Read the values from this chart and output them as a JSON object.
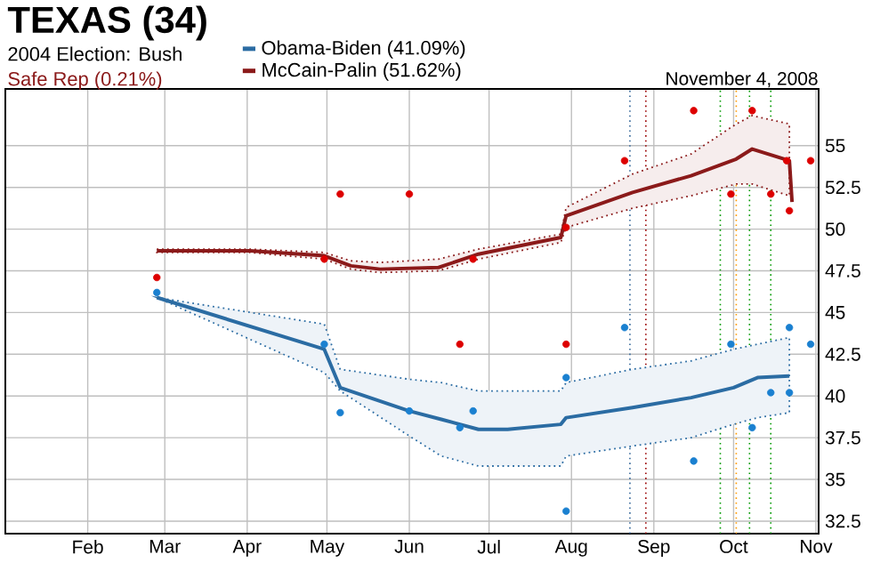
{
  "chart_data": {
    "type": "line",
    "title": "TEXAS (34)",
    "subtitle": "2004 Election: Bush",
    "annotations": [
      "Safe Rep (0.21%)",
      "November 4, 2008"
    ],
    "xlim": [
      "2008-01-01",
      "2008-11-02"
    ],
    "xticks": [
      {
        "value": "2008-02-01",
        "label": "Feb"
      },
      {
        "value": "2008-03-01",
        "label": "Mar"
      },
      {
        "value": "2008-04-01",
        "label": "Apr"
      },
      {
        "value": "2008-05-01",
        "label": "May"
      },
      {
        "value": "2008-06-01",
        "label": "Jun"
      },
      {
        "value": "2008-07-01",
        "label": "Jul"
      },
      {
        "value": "2008-08-01",
        "label": "Aug"
      },
      {
        "value": "2008-09-01",
        "label": "Sep"
      },
      {
        "value": "2008-10-01",
        "label": "Oct"
      },
      {
        "value": "2008-11-01",
        "label": "Nov"
      }
    ],
    "ylim": [
      31.75,
      58.4
    ],
    "yticks": [
      32.5,
      35,
      37.5,
      40,
      42.5,
      45,
      47.5,
      50,
      52.5,
      55
    ],
    "grid": true,
    "legend": "top",
    "ref_lines": [
      {
        "axis": "x",
        "value": "2008-08-23",
        "color": "#336699",
        "line_style": "dotted"
      },
      {
        "axis": "x",
        "value": "2008-08-29",
        "color": "#990000",
        "line_style": "dotted"
      },
      {
        "axis": "x",
        "value": "2008-09-26",
        "color": "#009900",
        "line_style": "dotted"
      },
      {
        "axis": "x",
        "value": "2008-10-02",
        "color": "#ff9900",
        "line_style": "dotted"
      },
      {
        "axis": "x",
        "value": "2008-10-07",
        "color": "#009900",
        "line_style": "dotted"
      },
      {
        "axis": "x",
        "value": "2008-10-15",
        "color": "#009900",
        "line_style": "dotted"
      }
    ],
    "series": [
      {
        "type": "line",
        "name": "Obama-Biden (41.09%)",
        "color": "#2b6ca3",
        "line_style": "solid",
        "marker": "none",
        "x": [
          "2008-02-27",
          "2008-04-30",
          "2008-05-06",
          "2008-06-01",
          "2008-06-13",
          "2008-06-27",
          "2008-07-08",
          "2008-07-28",
          "2008-07-30",
          "2008-08-24",
          "2008-09-15",
          "2008-10-01",
          "2008-10-10",
          "2008-10-22"
        ],
        "values": [
          45.9,
          42.8,
          40.5,
          39.1,
          38.6,
          38.0,
          38.0,
          38.3,
          38.7,
          39.3,
          39.9,
          40.5,
          41.1,
          41.2
        ],
        "lower": [
          45.9,
          41.4,
          40.3,
          37.6,
          36.4,
          35.8,
          35.8,
          35.8,
          36.4,
          37.0,
          37.5,
          38.3,
          38.7,
          39.0
        ],
        "upper": [
          45.9,
          44.3,
          41.6,
          41.0,
          40.8,
          40.3,
          40.3,
          40.3,
          40.8,
          41.6,
          42.1,
          42.8,
          43.1,
          43.5
        ]
      },
      {
        "type": "line",
        "name": "McCain-Palin (51.62%)",
        "color": "#8b1a1a",
        "line_style": "solid",
        "marker": "none",
        "x": [
          "2008-02-27",
          "2008-04-02",
          "2008-04-30",
          "2008-05-10",
          "2008-05-21",
          "2008-06-12",
          "2008-06-27",
          "2008-07-28",
          "2008-07-30",
          "2008-08-24",
          "2008-09-15",
          "2008-10-02",
          "2008-10-08",
          "2008-10-22",
          "2008-10-23"
        ],
        "values": [
          48.7,
          48.7,
          48.4,
          47.8,
          47.6,
          47.7,
          48.5,
          49.5,
          50.8,
          52.2,
          53.2,
          54.2,
          54.8,
          54.1,
          51.62
        ],
        "lower": [
          48.6,
          48.6,
          48.2,
          47.6,
          47.4,
          47.5,
          48.2,
          49.2,
          50.1,
          51.25,
          52.0,
          52.7,
          52.7,
          52.0,
          null
        ],
        "upper": [
          48.8,
          48.8,
          48.6,
          48.1,
          48.0,
          48.2,
          48.8,
          49.7,
          51.3,
          53.3,
          54.5,
          56.3,
          56.8,
          56.3,
          null
        ]
      },
      {
        "type": "scatter",
        "color": "#1a80d0",
        "marker": "circle",
        "x": [
          "2008-02-27",
          "2008-04-30",
          "2008-05-06",
          "2008-06-01",
          "2008-06-20",
          "2008-06-25",
          "2008-07-30",
          "2008-07-30",
          "2008-08-21",
          "2008-09-16",
          "2008-09-30",
          "2008-10-08",
          "2008-10-15",
          "2008-10-22",
          "2008-10-22",
          "2008-10-30"
        ],
        "values": [
          46.2,
          43.1,
          39.0,
          39.1,
          38.1,
          39.1,
          41.1,
          33.1,
          44.1,
          36.1,
          43.1,
          38.1,
          40.2,
          44.1,
          40.2,
          43.1
        ]
      },
      {
        "type": "scatter",
        "color": "#dd0000",
        "marker": "circle",
        "x": [
          "2008-02-27",
          "2008-04-30",
          "2008-05-06",
          "2008-06-01",
          "2008-06-20",
          "2008-06-25",
          "2008-07-30",
          "2008-07-30",
          "2008-08-21",
          "2008-09-16",
          "2008-09-30",
          "2008-10-08",
          "2008-10-15",
          "2008-10-21",
          "2008-10-22",
          "2008-10-30"
        ],
        "values": [
          47.1,
          48.2,
          52.1,
          52.1,
          43.1,
          48.2,
          43.1,
          50.1,
          54.1,
          57.1,
          52.1,
          57.1,
          52.1,
          54.1,
          51.1,
          54.1
        ]
      }
    ]
  }
}
